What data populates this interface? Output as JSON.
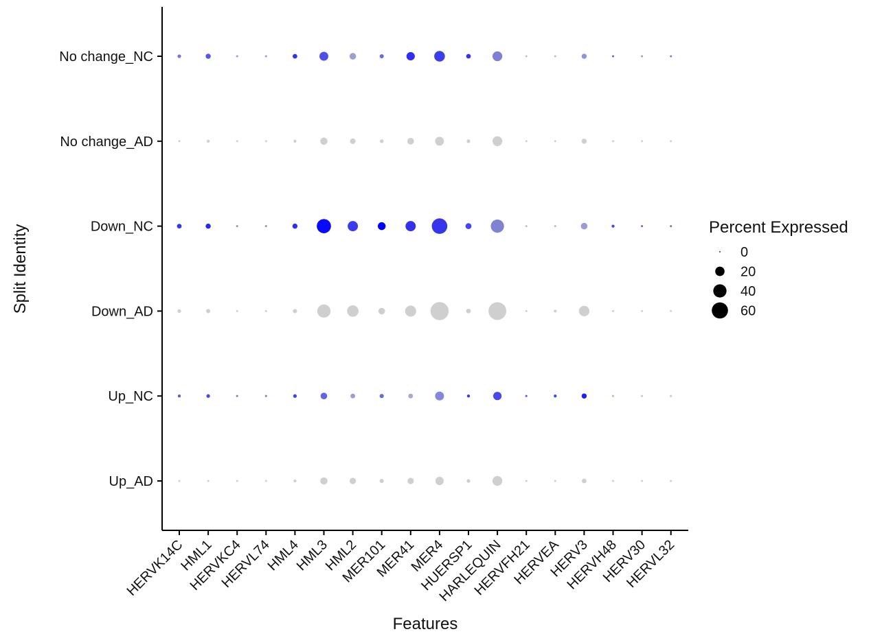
{
  "chart_data": {
    "type": "scatter",
    "subtype": "dotplot",
    "xlabel": "Features",
    "ylabel": "Split Identity",
    "features": [
      "HERVK14C",
      "HML1",
      "HERVKC4",
      "HERVL74",
      "HML4",
      "HML3",
      "HML2",
      "MER101",
      "MER41",
      "MER4",
      "HUERSP1",
      "HARLEQUIN",
      "HERVFH21",
      "HERVEA",
      "HERV3",
      "HERVH48",
      "HERV30",
      "HERVL32"
    ],
    "identities": [
      "No change_NC",
      "No change_AD",
      "Down_NC",
      "Down_AD",
      "Up_NC",
      "Up_AD"
    ],
    "series": [
      {
        "name": "No change_NC",
        "pct": [
          3,
          6,
          1,
          1,
          5,
          18,
          10,
          4,
          16,
          26,
          5,
          22,
          1,
          1,
          6,
          1,
          1,
          1
        ],
        "color": [
          "#7777e2",
          "#5555e8",
          "#9b9bd8",
          "#9b9bd8",
          "#3333ee",
          "#5050e6",
          "#a0a0d0",
          "#6a6ae0",
          "#2f2fee",
          "#3d3dec",
          "#3535ee",
          "#7f7fd8",
          "#bdbdd2",
          "#bdbdd2",
          "#9494d6",
          "#6060e0",
          "#9c9cd2",
          "#7c7cda"
        ]
      },
      {
        "name": "No change_AD",
        "pct": [
          1,
          2,
          1,
          1,
          2,
          12,
          7,
          3,
          10,
          18,
          3,
          22,
          1,
          1,
          6,
          1,
          1,
          1
        ],
        "color": [
          "#cfcfcf",
          "#cfcfcf",
          "#cfcfcf",
          "#cfcfcf",
          "#cfcfcf",
          "#cfcfcf",
          "#cfcfcf",
          "#cfcfcf",
          "#cfcfcf",
          "#cfcfcf",
          "#cfcfcf",
          "#cfcfcf",
          "#cfcfcf",
          "#cfcfcf",
          "#cfcfcf",
          "#cfcfcf",
          "#cfcfcf",
          "#cfcfcf"
        ]
      },
      {
        "name": "Down_NC",
        "pct": [
          5,
          6,
          1,
          1,
          6,
          46,
          24,
          14,
          24,
          55,
          8,
          40,
          1,
          1,
          10,
          2,
          1,
          1
        ],
        "color": [
          "#3535ec",
          "#2828ee",
          "#8c8cd8",
          "#8c8cd8",
          "#3030ee",
          "#0a0afa",
          "#3c3cec",
          "#0000ff",
          "#3232ec",
          "#3535ec",
          "#4444ea",
          "#8282d2",
          "#bdbdd2",
          "#bdbdd2",
          "#9c9cd2",
          "#4444e8",
          "#6464de",
          "#7070dc"
        ]
      },
      {
        "name": "Down_AD",
        "pct": [
          3,
          4,
          1,
          1,
          4,
          40,
          30,
          10,
          28,
          75,
          5,
          72,
          1,
          2,
          25,
          1,
          1,
          1
        ],
        "color": [
          "#cfcfcf",
          "#cfcfcf",
          "#cfcfcf",
          "#cfcfcf",
          "#cfcfcf",
          "#cfcfcf",
          "#cfcfcf",
          "#cfcfcf",
          "#cfcfcf",
          "#cfcfcf",
          "#cfcfcf",
          "#cfcfcf",
          "#cfcfcf",
          "#cfcfcf",
          "#cfcfcf",
          "#cfcfcf",
          "#cfcfcf",
          "#cfcfcf"
        ]
      },
      {
        "name": "Up_NC",
        "pct": [
          2,
          3,
          1,
          1,
          3,
          10,
          5,
          4,
          5,
          18,
          2,
          16,
          1,
          2,
          6,
          1,
          1,
          1
        ],
        "color": [
          "#5c5ce2",
          "#4848e8",
          "#7c7cdc",
          "#7c7cdc",
          "#4444ea",
          "#6464e0",
          "#9c9cd2",
          "#6a6ade",
          "#a8a8d2",
          "#8686dc",
          "#3838ee",
          "#4a4aea",
          "#5858e2",
          "#4646ea",
          "#2020f2",
          "#b8b8d6",
          "#c6c6d2",
          "#c6c6d2"
        ]
      },
      {
        "name": "Up_AD",
        "pct": [
          1,
          1,
          1,
          1,
          2,
          12,
          9,
          4,
          9,
          16,
          3,
          22,
          1,
          1,
          5,
          1,
          1,
          1
        ],
        "color": [
          "#cfcfcf",
          "#cfcfcf",
          "#cfcfcf",
          "#cfcfcf",
          "#cfcfcf",
          "#cfcfcf",
          "#cfcfcf",
          "#cfcfcf",
          "#cfcfcf",
          "#cfcfcf",
          "#cfcfcf",
          "#cfcfcf",
          "#cfcfcf",
          "#cfcfcf",
          "#cfcfcf",
          "#cfcfcf",
          "#cfcfcf",
          "#cfcfcf"
        ]
      }
    ],
    "legend": {
      "title": "Percent Expressed",
      "items": [
        {
          "label": "0",
          "value": 0
        },
        {
          "label": "20",
          "value": 20
        },
        {
          "label": "40",
          "value": 40
        },
        {
          "label": "60",
          "value": 60
        }
      ]
    }
  }
}
